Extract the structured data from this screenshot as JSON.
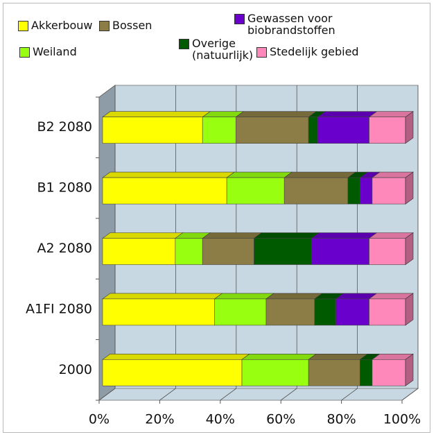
{
  "chart_data": {
    "type": "stacked-bar-3d",
    "orientation": "horizontal",
    "categories": [
      "B2 2080",
      "B1 2080",
      "A2 2080",
      "A1FI 2080",
      "2000"
    ],
    "series": [
      {
        "name": "Akkerbouw",
        "color": "#ffff00",
        "values": [
          33,
          41,
          24,
          37,
          46
        ]
      },
      {
        "name": "Weiland",
        "color": "#99ff11",
        "values": [
          11,
          19,
          9,
          17,
          22
        ]
      },
      {
        "name": "Bossen",
        "color": "#8b7d45",
        "values": [
          24,
          21,
          17,
          16,
          17
        ]
      },
      {
        "name": "Overige (natuurlijk)",
        "color": "#005a00",
        "values": [
          3,
          4,
          19,
          7,
          4
        ]
      },
      {
        "name": "Gewassen voor biobrandstoffen",
        "color": "#6a00cc",
        "values": [
          17,
          4,
          19,
          11,
          0
        ]
      },
      {
        "name": "Stedelijk gebied",
        "color": "#ff88bb",
        "values": [
          12,
          11,
          12,
          12,
          11
        ]
      }
    ],
    "xlim": [
      0,
      100
    ],
    "xticks": [
      {
        "value": 0,
        "label": "0%"
      },
      {
        "value": 20,
        "label": "20%"
      },
      {
        "value": 40,
        "label": "40%"
      },
      {
        "value": 60,
        "label": "60%"
      },
      {
        "value": 80,
        "label": "80%"
      },
      {
        "value": 100,
        "label": "100%"
      }
    ],
    "grid": true
  }
}
